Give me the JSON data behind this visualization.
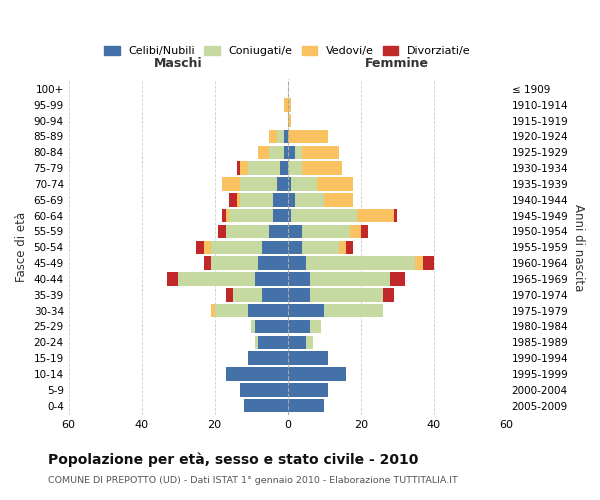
{
  "age_groups": [
    "0-4",
    "5-9",
    "10-14",
    "15-19",
    "20-24",
    "25-29",
    "30-34",
    "35-39",
    "40-44",
    "45-49",
    "50-54",
    "55-59",
    "60-64",
    "65-69",
    "70-74",
    "75-79",
    "80-84",
    "85-89",
    "90-94",
    "95-99",
    "100+"
  ],
  "birth_years": [
    "2005-2009",
    "2000-2004",
    "1995-1999",
    "1990-1994",
    "1985-1989",
    "1980-1984",
    "1975-1979",
    "1970-1974",
    "1965-1969",
    "1960-1964",
    "1955-1959",
    "1950-1954",
    "1945-1949",
    "1940-1944",
    "1935-1939",
    "1930-1934",
    "1925-1929",
    "1920-1924",
    "1915-1919",
    "1910-1914",
    "≤ 1909"
  ],
  "maschi": {
    "celibi": [
      12,
      13,
      17,
      11,
      8,
      9,
      11,
      7,
      9,
      8,
      7,
      5,
      4,
      4,
      3,
      2,
      1,
      1,
      0,
      0,
      0
    ],
    "coniugati": [
      0,
      0,
      0,
      0,
      1,
      1,
      9,
      8,
      21,
      13,
      14,
      12,
      12,
      9,
      10,
      9,
      4,
      2,
      0,
      0,
      0
    ],
    "vedovi": [
      0,
      0,
      0,
      0,
      0,
      0,
      1,
      0,
      0,
      0,
      2,
      0,
      1,
      1,
      5,
      2,
      3,
      2,
      0,
      1,
      0
    ],
    "divorziati": [
      0,
      0,
      0,
      0,
      0,
      0,
      0,
      2,
      3,
      2,
      2,
      2,
      1,
      2,
      0,
      1,
      0,
      0,
      0,
      0,
      0
    ]
  },
  "femmine": {
    "nubili": [
      10,
      11,
      16,
      11,
      5,
      6,
      10,
      6,
      6,
      5,
      4,
      4,
      1,
      2,
      1,
      0,
      2,
      0,
      0,
      0,
      0
    ],
    "coniugate": [
      0,
      0,
      0,
      0,
      2,
      3,
      16,
      20,
      22,
      30,
      10,
      13,
      18,
      8,
      7,
      4,
      2,
      0,
      0,
      0,
      0
    ],
    "vedove": [
      0,
      0,
      0,
      0,
      0,
      0,
      0,
      0,
      0,
      2,
      2,
      3,
      10,
      8,
      10,
      11,
      10,
      11,
      1,
      1,
      0
    ],
    "divorziate": [
      0,
      0,
      0,
      0,
      0,
      0,
      0,
      3,
      4,
      3,
      2,
      2,
      1,
      0,
      0,
      0,
      0,
      0,
      0,
      0,
      0
    ]
  },
  "colors": {
    "celibi_nubili": "#4472a8",
    "coniugati": "#c6d9a0",
    "vedovi": "#f9c160",
    "divorziati": "#c0282a"
  },
  "xlim": 60,
  "title": "Popolazione per età, sesso e stato civile - 2010",
  "subtitle": "COMUNE DI PREPOTTO (UD) - Dati ISTAT 1° gennaio 2010 - Elaborazione TUTTITALIA.IT",
  "ylabel_left": "Fasce di età",
  "ylabel_right": "Anni di nascita",
  "xlabel_left": "Maschi",
  "xlabel_right": "Femmine",
  "legend_labels": [
    "Celibi/Nubili",
    "Coniugati/e",
    "Vedovi/e",
    "Divorziati/e"
  ],
  "background_color": "#ffffff",
  "grid_color": "#cccccc"
}
